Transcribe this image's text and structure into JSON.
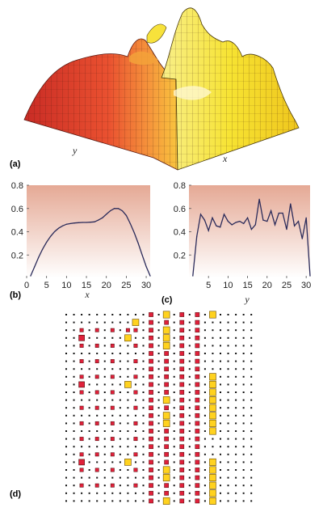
{
  "panels": {
    "a": {
      "label": "(a)",
      "xlabel": "x",
      "ylabel": "y",
      "type": "3d-surface"
    },
    "b": {
      "label": "(b)"
    },
    "c": {
      "label": "(c)"
    },
    "d": {
      "label": "(d)"
    }
  },
  "colors": {
    "surface_red": "#d83a2a",
    "surface_orange": "#f07d3a",
    "surface_yellow": "#f6e03a",
    "line": "#2b2b5a",
    "plot_bg_top": "#e9b7a6",
    "plot_bg_bottom": "#ffffff",
    "dot_red": "#e0203a",
    "dot_yellow": "#ffd21f",
    "dot_black": "#111111"
  },
  "chart_data": [
    {
      "type": "line",
      "panel": "b",
      "xlabel": "x",
      "ylabel": "",
      "xlim": [
        0,
        31
      ],
      "ylim": [
        0,
        0.8
      ],
      "xticks": [
        "0",
        "5",
        "10",
        "15",
        "20",
        "25",
        "30"
      ],
      "yticks": [
        "0.2",
        "0.4",
        "0.6",
        "0.8"
      ],
      "x": [
        1,
        2,
        3,
        4,
        5,
        6,
        7,
        8,
        9,
        10,
        11,
        12,
        13,
        14,
        15,
        16,
        17,
        18,
        19,
        20,
        21,
        22,
        23,
        24,
        25,
        26,
        27,
        28,
        29,
        30,
        31
      ],
      "values": [
        0.02,
        0.1,
        0.18,
        0.25,
        0.31,
        0.36,
        0.4,
        0.43,
        0.45,
        0.465,
        0.47,
        0.475,
        0.478,
        0.48,
        0.48,
        0.482,
        0.485,
        0.5,
        0.52,
        0.55,
        0.58,
        0.6,
        0.6,
        0.58,
        0.54,
        0.47,
        0.39,
        0.3,
        0.2,
        0.1,
        0.02
      ]
    },
    {
      "type": "line",
      "panel": "c",
      "xlabel": "y",
      "ylabel": "",
      "xlim": [
        0,
        31
      ],
      "ylim": [
        0,
        0.8
      ],
      "xticks": [
        "5",
        "10",
        "15",
        "20",
        "25",
        "30"
      ],
      "yticks": [
        "0.2",
        "0.4",
        "0.6",
        "0.8"
      ],
      "x": [
        1,
        2,
        3,
        4,
        5,
        6,
        7,
        8,
        9,
        10,
        11,
        12,
        13,
        14,
        15,
        16,
        17,
        18,
        19,
        20,
        21,
        22,
        23,
        24,
        25,
        26,
        27,
        28,
        29,
        30,
        31
      ],
      "values": [
        0.02,
        0.36,
        0.55,
        0.5,
        0.41,
        0.52,
        0.45,
        0.44,
        0.55,
        0.49,
        0.46,
        0.48,
        0.49,
        0.47,
        0.52,
        0.42,
        0.46,
        0.68,
        0.5,
        0.49,
        0.58,
        0.46,
        0.56,
        0.56,
        0.42,
        0.64,
        0.45,
        0.49,
        0.34,
        0.52,
        0.02
      ]
    }
  ],
  "grid_d": {
    "cols": 25,
    "rows": 25,
    "red_columns": [
      11,
      13,
      15,
      17
    ],
    "yellow_column_cells": {
      "13": [
        0,
        2,
        3,
        4,
        11,
        13,
        14,
        20,
        21,
        24
      ],
      "19": [
        0,
        8,
        9,
        10,
        11,
        12,
        13,
        14,
        15,
        19,
        20,
        21,
        22,
        23,
        24
      ]
    },
    "scattered_red": [
      [
        2,
        2
      ],
      [
        4,
        2
      ],
      [
        6,
        2
      ],
      [
        8,
        2
      ],
      [
        2,
        4
      ],
      [
        4,
        4
      ],
      [
        6,
        4
      ],
      [
        2,
        6
      ],
      [
        4,
        6
      ],
      [
        6,
        6
      ],
      [
        2,
        8
      ],
      [
        4,
        8
      ],
      [
        6,
        8
      ],
      [
        2,
        10
      ],
      [
        4,
        10
      ],
      [
        6,
        10
      ],
      [
        2,
        12
      ],
      [
        4,
        12
      ],
      [
        6,
        12
      ],
      [
        2,
        14
      ],
      [
        4,
        14
      ],
      [
        6,
        14
      ],
      [
        2,
        16
      ],
      [
        4,
        16
      ],
      [
        6,
        16
      ],
      [
        2,
        18
      ],
      [
        4,
        18
      ],
      [
        6,
        18
      ],
      [
        2,
        20
      ],
      [
        4,
        20
      ],
      [
        6,
        20
      ],
      [
        2,
        22
      ],
      [
        4,
        22
      ],
      [
        6,
        22
      ],
      [
        9,
        2
      ],
      [
        9,
        4
      ],
      [
        9,
        6
      ],
      [
        9,
        8
      ],
      [
        9,
        10
      ],
      [
        9,
        12
      ],
      [
        9,
        14
      ],
      [
        9,
        16
      ],
      [
        9,
        18
      ],
      [
        9,
        20
      ],
      [
        9,
        22
      ]
    ],
    "big_red": [
      [
        2,
        3
      ],
      [
        2,
        9
      ],
      [
        2,
        19
      ]
    ],
    "big_yellow": [
      [
        8,
        3
      ],
      [
        8,
        9
      ],
      [
        8,
        19
      ],
      [
        9,
        1
      ]
    ]
  }
}
